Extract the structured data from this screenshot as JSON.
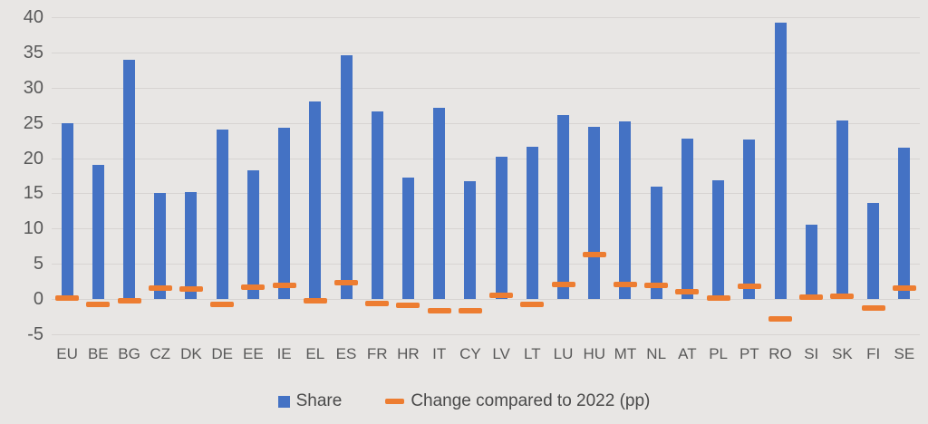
{
  "chart_data": {
    "type": "bar",
    "title": "",
    "categories": [
      "EU",
      "BE",
      "BG",
      "CZ",
      "DK",
      "DE",
      "EE",
      "IE",
      "EL",
      "ES",
      "FR",
      "HR",
      "IT",
      "CY",
      "LV",
      "LT",
      "LU",
      "HU",
      "MT",
      "NL",
      "AT",
      "PL",
      "PT",
      "RO",
      "SI",
      "SK",
      "FI",
      "SE"
    ],
    "series": [
      {
        "name": "Share",
        "type": "bar",
        "color": "#4472C4",
        "values": [
          24.9,
          19.1,
          34.0,
          15.0,
          15.2,
          24.0,
          18.3,
          24.3,
          28.1,
          34.6,
          26.6,
          17.3,
          27.2,
          16.7,
          20.2,
          21.6,
          26.1,
          24.5,
          25.2,
          15.9,
          22.8,
          16.9,
          22.7,
          39.2,
          10.6,
          25.4,
          13.7,
          21.5
        ]
      },
      {
        "name": "Change compared to 2022 (pp)",
        "type": "dash",
        "color": "#ED7D31",
        "values": [
          0.1,
          -0.8,
          -0.2,
          1.6,
          1.4,
          -0.7,
          1.7,
          2.0,
          -0.3,
          2.3,
          -0.6,
          -0.9,
          -1.6,
          -1.6,
          0.5,
          -0.7,
          2.1,
          6.3,
          2.1,
          1.9,
          1.0,
          0.2,
          1.8,
          -2.8,
          0.3,
          0.4,
          -1.3,
          1.5
        ]
      }
    ],
    "y_axis": {
      "min": -5,
      "max": 40,
      "step": 5,
      "ticks": [
        40,
        35,
        30,
        25,
        20,
        15,
        10,
        5,
        0,
        -5
      ]
    },
    "xlabel": "",
    "ylabel": "",
    "grid": true,
    "legend_position": "bottom"
  },
  "colors": {
    "bar_blue": "#4472C4",
    "dash_orange": "#ED7D31",
    "background": "#E8E6E4",
    "gridline": "#D7D4D2",
    "axis_text": "#595959"
  }
}
